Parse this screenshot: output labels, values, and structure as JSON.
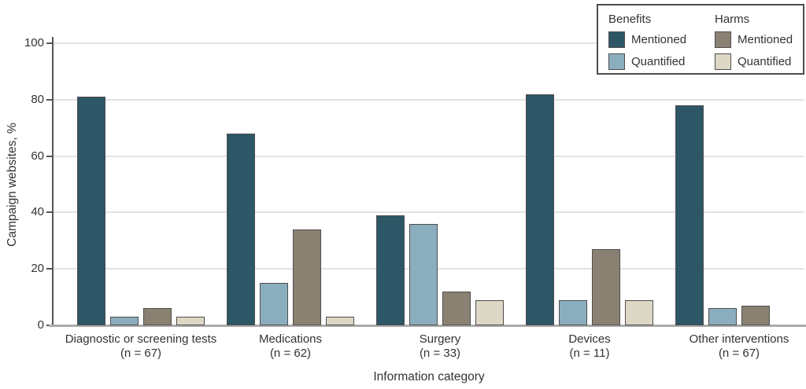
{
  "chart_data": {
    "type": "bar",
    "title": "",
    "xlabel": "Information category",
    "ylabel": "Campaign websites, %",
    "ylim": [
      0,
      100
    ],
    "yticks": [
      0,
      20,
      40,
      60,
      80,
      100
    ],
    "grid": "horizontal",
    "legend_position": "top-right",
    "categories": [
      {
        "label": "Diagnostic or screening tests",
        "sub": "(n = 67)"
      },
      {
        "label": "Medications",
        "sub": "(n = 62)"
      },
      {
        "label": "Surgery",
        "sub": "(n = 33)"
      },
      {
        "label": "Devices",
        "sub": "(n = 11)"
      },
      {
        "label": "Other interventions",
        "sub": "(n = 67)"
      }
    ],
    "series": [
      {
        "name": "benefits-mentioned",
        "group": "Benefits",
        "label": "Mentioned",
        "color": "#2d5666",
        "values": [
          81,
          68,
          39,
          82,
          78
        ]
      },
      {
        "name": "benefits-quantified",
        "group": "Benefits",
        "label": "Quantified",
        "color": "#8baebe",
        "values": [
          3,
          15,
          36,
          9,
          6
        ]
      },
      {
        "name": "harms-mentioned",
        "group": "Harms",
        "label": "Mentioned",
        "color": "#8a8173",
        "values": [
          6,
          34,
          12,
          27,
          7
        ]
      },
      {
        "name": "harms-quantified",
        "group": "Harms",
        "label": "Quantified",
        "color": "#ddd7c5",
        "values": [
          3,
          3,
          9,
          9,
          0
        ]
      }
    ],
    "legend": {
      "columns": [
        {
          "header": "Benefits",
          "items": [
            {
              "label": "Mentioned",
              "color": "#2d5666"
            },
            {
              "label": "Quantified",
              "color": "#8baebe"
            }
          ]
        },
        {
          "header": "Harms",
          "items": [
            {
              "label": "Mentioned",
              "color": "#8a8173"
            },
            {
              "label": "Quantified",
              "color": "#ddd7c5"
            }
          ]
        }
      ]
    },
    "colors": {
      "bar_border": "#4e4e4e",
      "gridline": "#e3e3e3",
      "axis": "#565656",
      "baseline": "#ababab",
      "text": "#333333"
    }
  }
}
